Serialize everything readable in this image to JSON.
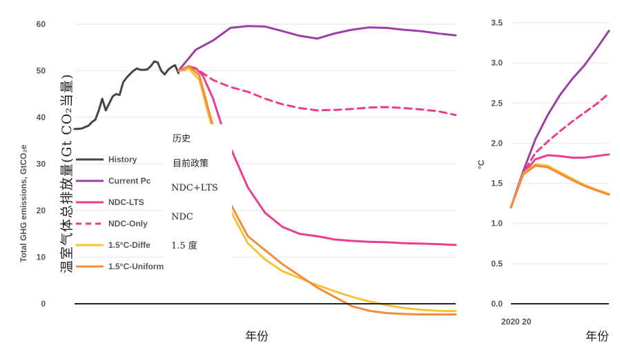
{
  "chart_data": [
    {
      "type": "line",
      "ylabel_en": "Total GHG emissions, GtCO₂e",
      "ylabel_cn": "温室气体总排放量(Gt CO₂当量)",
      "xlabel": "年份",
      "ylim": [
        -2,
        62
      ],
      "xlim": [
        1990,
        2100
      ],
      "yticks": [
        "60",
        "50",
        "40",
        "30",
        "20",
        "10",
        "0"
      ],
      "ytick_values": [
        60,
        50,
        40,
        30,
        20,
        10,
        0
      ],
      "legend": [
        "History",
        "Current Pc",
        "NDC-LTS",
        "NDC-Only",
        "1.5°C-Diffe",
        "1.5°C-Uniform"
      ],
      "legend_cn": [
        "历史",
        "目前政策",
        "NDC+LTS",
        "NDC",
        "1.5 度"
      ],
      "series": [
        {
          "name": "History",
          "color": "#444444",
          "dash": "",
          "x": [
            1990,
            1992,
            1994,
            1995,
            1996,
            1997,
            1998,
            1999,
            2000,
            2001,
            2002,
            2003,
            2004,
            2005,
            2006,
            2007,
            2008,
            2009,
            2010,
            2011,
            2012,
            2013,
            2014,
            2015,
            2016,
            2017,
            2018,
            2019,
            2020
          ],
          "y": [
            37.5,
            37.6,
            38.2,
            39,
            39.5,
            41.5,
            44,
            41.5,
            43,
            44.5,
            45,
            44.8,
            47.5,
            48.5,
            49.3,
            50,
            50.5,
            50.2,
            50.2,
            50.3,
            51,
            52,
            51.8,
            50,
            49.2,
            50.2,
            50.8,
            51.2,
            49.5
          ]
        },
        {
          "name": "Current Pc",
          "color": "#9b3fa6",
          "dash": "",
          "x": [
            2020,
            2025,
            2030,
            2035,
            2040,
            2045,
            2050,
            2055,
            2060,
            2065,
            2070,
            2075,
            2080,
            2085,
            2090,
            2095,
            2100
          ],
          "y": [
            50,
            54.5,
            56.5,
            59.2,
            59.6,
            59.5,
            58.5,
            57.5,
            56.9,
            58,
            58.8,
            59.3,
            59.2,
            58.8,
            58.5,
            58,
            57.6
          ]
        },
        {
          "name": "NDC-LTS",
          "color": "#ee3b8e",
          "dash": "",
          "x": [
            2020,
            2023,
            2025,
            2027,
            2030,
            2033,
            2035,
            2040,
            2045,
            2050,
            2055,
            2060,
            2065,
            2070,
            2075,
            2080,
            2085,
            2090,
            2095,
            2100
          ],
          "y": [
            50,
            51,
            50.5,
            49,
            44,
            37,
            33.5,
            25,
            19.5,
            16.5,
            15,
            14.5,
            13.8,
            13.5,
            13.3,
            13.2,
            13,
            12.9,
            12.8,
            12.6
          ]
        },
        {
          "name": "NDC-Only",
          "color": "#ee3b8e",
          "dash": "10 7",
          "x": [
            2020,
            2025,
            2030,
            2035,
            2040,
            2045,
            2050,
            2055,
            2060,
            2065,
            2070,
            2075,
            2080,
            2085,
            2090,
            2095,
            2100
          ],
          "y": [
            50,
            50.5,
            48,
            46.5,
            45.5,
            44,
            42.8,
            42,
            41.5,
            41.6,
            41.8,
            42.1,
            42.2,
            42,
            41.7,
            41.3,
            40.5
          ]
        },
        {
          "name": "1.5°C-Diffe",
          "color": "#f7c233",
          "dash": "",
          "x": [
            2020,
            2023,
            2026,
            2030,
            2033,
            2035,
            2040,
            2045,
            2050,
            2055,
            2060,
            2065,
            2070,
            2075,
            2080,
            2085,
            2090,
            2095,
            2100
          ],
          "y": [
            50,
            50.5,
            48,
            37,
            26,
            20,
            13,
            9.5,
            7,
            5.5,
            4,
            2.7,
            1.5,
            0.5,
            -0.3,
            -0.9,
            -1.3,
            -1.5,
            -1.6
          ]
        },
        {
          "name": "1.5°C-Uniform",
          "color": "#f28c3c",
          "dash": "",
          "x": [
            2020,
            2023,
            2026,
            2030,
            2033,
            2035,
            2040,
            2045,
            2050,
            2055,
            2060,
            2065,
            2070,
            2075,
            2080,
            2085,
            2090,
            2095,
            2100
          ],
          "y": [
            50,
            51,
            49,
            38,
            27.5,
            21.5,
            14.5,
            11.5,
            8.5,
            6,
            3.5,
            1.5,
            -0.5,
            -1.5,
            -2,
            -2.2,
            -2.3,
            -2.3,
            -2.3
          ]
        }
      ]
    },
    {
      "type": "line",
      "ylabel": "°C",
      "xlabel": "年份",
      "ylim": [
        0,
        3.5
      ],
      "xlim": [
        2020,
        2100
      ],
      "xtick_visible": "2020 20",
      "yticks": [
        "3.5",
        "3.0",
        "2.5",
        "2.0",
        "1.5",
        "1.0",
        "0.5",
        "0.0"
      ],
      "ytick_values": [
        3.5,
        3.0,
        2.5,
        2.0,
        1.5,
        1.0,
        0.5,
        0.0
      ],
      "series": [
        {
          "name": "Current Pc",
          "color": "#9b3fa6",
          "dash": "",
          "x": [
            2020,
            2030,
            2040,
            2050,
            2060,
            2070,
            2080,
            2090,
            2100
          ],
          "y": [
            1.2,
            1.65,
            2.05,
            2.35,
            2.6,
            2.8,
            2.97,
            3.18,
            3.4
          ]
        },
        {
          "name": "NDC-Only",
          "color": "#ee3b8e",
          "dash": "9 6",
          "x": [
            2020,
            2030,
            2040,
            2050,
            2060,
            2070,
            2080,
            2090,
            2100
          ],
          "y": [
            1.2,
            1.63,
            1.88,
            2.02,
            2.15,
            2.27,
            2.38,
            2.49,
            2.62
          ]
        },
        {
          "name": "NDC-LTS",
          "color": "#ee3b8e",
          "dash": "",
          "x": [
            2020,
            2030,
            2040,
            2050,
            2060,
            2070,
            2080,
            2090,
            2100
          ],
          "y": [
            1.2,
            1.62,
            1.8,
            1.85,
            1.84,
            1.82,
            1.82,
            1.84,
            1.86
          ]
        },
        {
          "name": "1.5°C-Diffe",
          "color": "#f7c233",
          "dash": "",
          "x": [
            2020,
            2030,
            2040,
            2050,
            2060,
            2070,
            2080,
            2090,
            2100
          ],
          "y": [
            1.2,
            1.62,
            1.74,
            1.72,
            1.64,
            1.56,
            1.48,
            1.42,
            1.37
          ]
        },
        {
          "name": "1.5°C-Uniform",
          "color": "#f28c3c",
          "dash": "",
          "x": [
            2020,
            2030,
            2040,
            2050,
            2060,
            2070,
            2080,
            2090,
            2100
          ],
          "y": [
            1.2,
            1.61,
            1.72,
            1.7,
            1.62,
            1.54,
            1.47,
            1.41,
            1.36
          ]
        }
      ]
    }
  ]
}
